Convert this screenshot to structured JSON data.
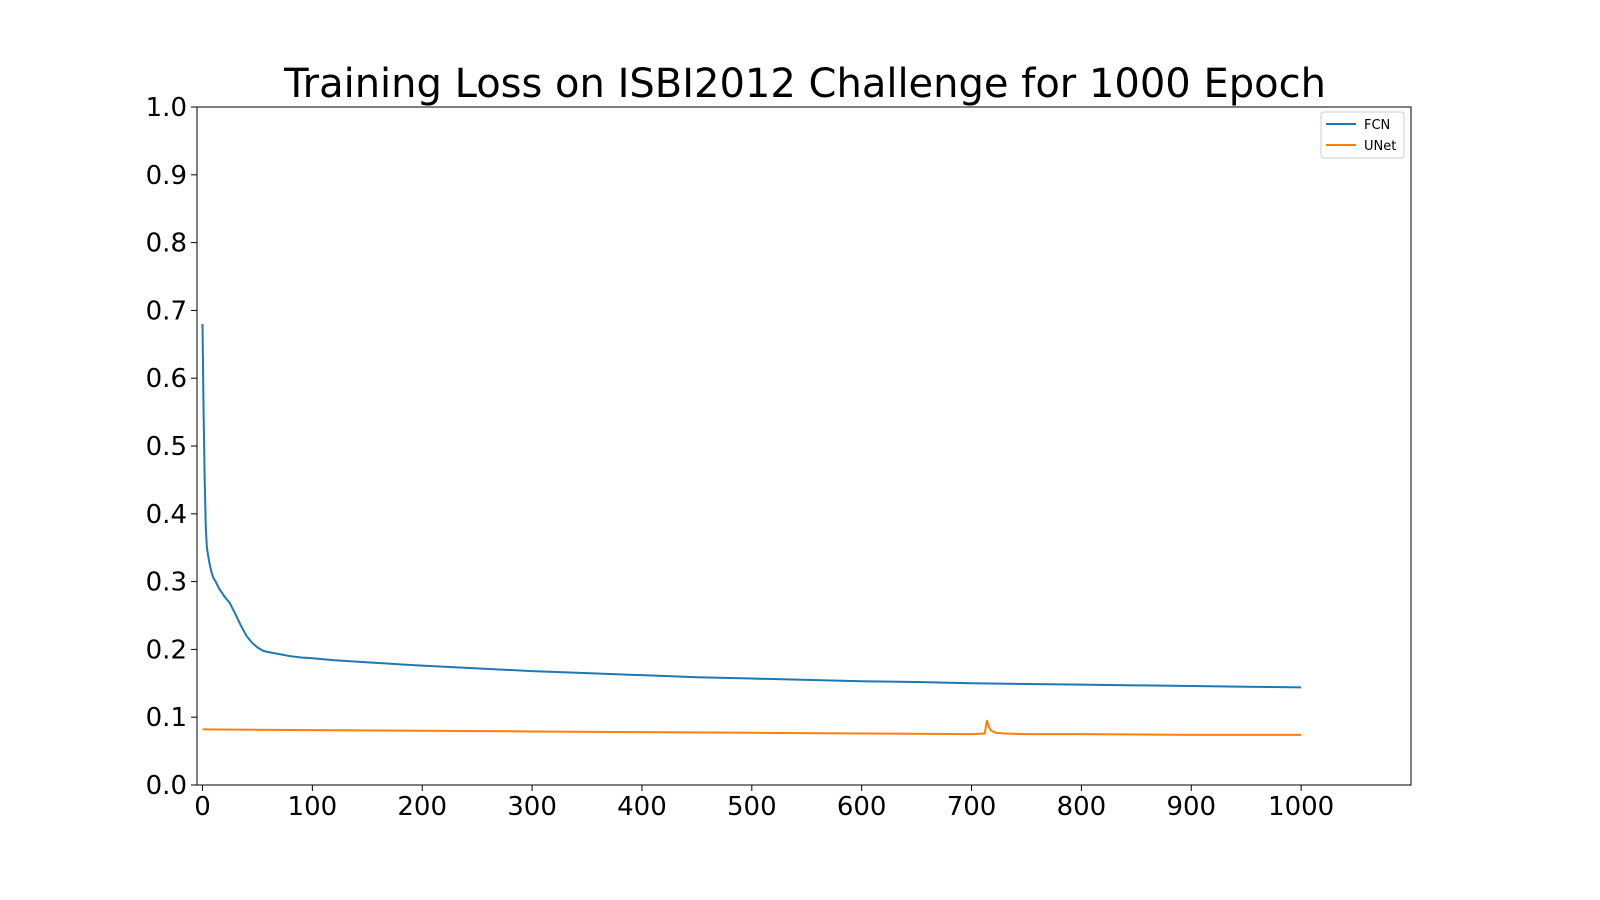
{
  "chart_data": {
    "type": "line",
    "title": "Training Loss on ISBI2012 Challenge for 1000 Epoch",
    "xlabel": "",
    "ylabel": "",
    "xlim": [
      -5,
      1100
    ],
    "ylim": [
      0,
      1
    ],
    "x_ticks": [
      0,
      100,
      200,
      300,
      400,
      500,
      600,
      700,
      800,
      900,
      1000
    ],
    "x_tick_labels": [
      "0",
      "100",
      "200",
      "300",
      "400",
      "500",
      "600",
      "700",
      "800",
      "900",
      "1000"
    ],
    "y_ticks": [
      0.0,
      0.1,
      0.2,
      0.3,
      0.4,
      0.5,
      0.6,
      0.7,
      0.8,
      0.9,
      1.0
    ],
    "y_tick_labels": [
      "0.0",
      "0.1",
      "0.2",
      "0.3",
      "0.4",
      "0.5",
      "0.6",
      "0.7",
      "0.8",
      "0.9",
      "1.0"
    ],
    "grid": false,
    "legend_position": "top-right",
    "series": [
      {
        "name": "FCN",
        "color": "#1f77b4",
        "x": [
          0,
          1,
          2,
          3,
          4,
          5,
          6,
          8,
          10,
          12,
          15,
          18,
          20,
          25,
          30,
          35,
          40,
          45,
          50,
          55,
          60,
          70,
          80,
          90,
          100,
          120,
          140,
          160,
          180,
          200,
          250,
          300,
          350,
          400,
          450,
          500,
          550,
          600,
          650,
          700,
          750,
          800,
          850,
          900,
          950,
          1000
        ],
        "y": [
          0.68,
          0.55,
          0.45,
          0.38,
          0.35,
          0.34,
          0.33,
          0.315,
          0.305,
          0.3,
          0.29,
          0.283,
          0.278,
          0.268,
          0.252,
          0.235,
          0.22,
          0.21,
          0.203,
          0.198,
          0.196,
          0.193,
          0.19,
          0.188,
          0.187,
          0.184,
          0.182,
          0.18,
          0.178,
          0.176,
          0.172,
          0.168,
          0.165,
          0.162,
          0.159,
          0.157,
          0.155,
          0.153,
          0.152,
          0.15,
          0.149,
          0.148,
          0.147,
          0.146,
          0.145,
          0.144
        ]
      },
      {
        "name": "UNet",
        "color": "#ff7f0e",
        "x": [
          0,
          100,
          200,
          300,
          400,
          500,
          600,
          700,
          712,
          714,
          716,
          718,
          722,
          730,
          750,
          800,
          900,
          1000
        ],
        "y": [
          0.082,
          0.081,
          0.08,
          0.079,
          0.078,
          0.077,
          0.076,
          0.075,
          0.076,
          0.095,
          0.085,
          0.08,
          0.077,
          0.076,
          0.075,
          0.075,
          0.074,
          0.074
        ]
      }
    ]
  }
}
